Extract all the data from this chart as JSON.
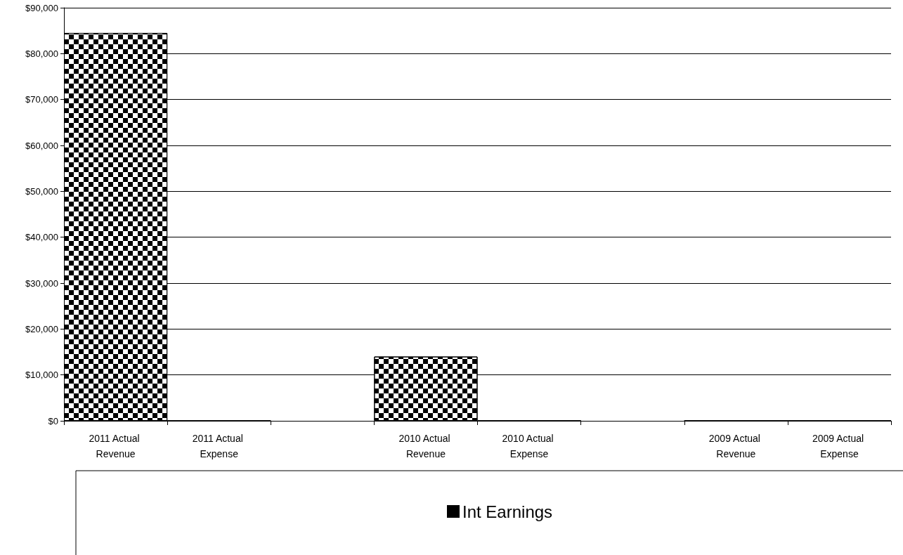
{
  "chart_data": {
    "type": "bar",
    "categories": [
      "2011 Actual Revenue",
      "2011 Actual Expense",
      null,
      "2010 Actual Revenue",
      "2010 Actual Expense",
      null,
      "2009 Actual Revenue",
      "2009 Actual Expense"
    ],
    "series": [
      {
        "name": "Int Earnings",
        "color": "#000000",
        "values": [
          84500,
          0,
          null,
          14000,
          0,
          null,
          0,
          0
        ]
      }
    ],
    "ylim": [
      0,
      90000
    ],
    "yticks": [
      {
        "value": 0,
        "label": "$0"
      },
      {
        "value": 10000,
        "label": "$10,000"
      },
      {
        "value": 20000,
        "label": "$20,000"
      },
      {
        "value": 30000,
        "label": "$30,000"
      },
      {
        "value": 40000,
        "label": "$40,000"
      },
      {
        "value": 50000,
        "label": "$50,000"
      },
      {
        "value": 60000,
        "label": "$60,000"
      },
      {
        "value": 70000,
        "label": "$70,000"
      },
      {
        "value": 80000,
        "label": "$80,000"
      },
      {
        "value": 90000,
        "label": "$90,000"
      }
    ],
    "grid": "y",
    "legend": "bottom"
  }
}
